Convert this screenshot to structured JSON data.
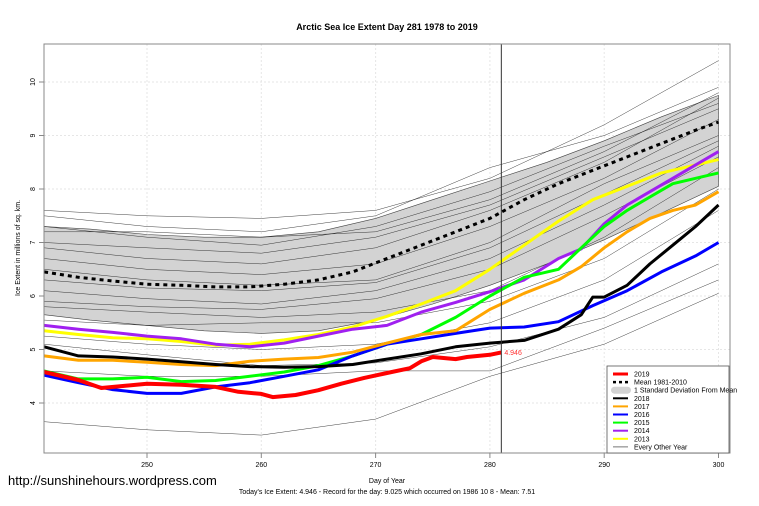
{
  "chart_data": {
    "type": "line",
    "title": "Arctic Sea Ice Extent Day 281 1978 to 2019",
    "xlabel": "Day of Year",
    "ylabel": "Ice Extent in millions of sq. km.",
    "xlim": [
      241,
      301
    ],
    "ylim": [
      3.1,
      10.8
    ],
    "x_ticks": [
      250,
      260,
      270,
      280,
      290,
      300
    ],
    "y_ticks": [
      4,
      5,
      6,
      7,
      8,
      9,
      10
    ],
    "grid": true,
    "current_day_marker": 281,
    "current_value_label": "4.946",
    "legend_position": "bottom-right",
    "caption": "Today's Ice Extent: 4.946  - Record for the day: 9.025 which occurred on 1986 10 8  - Mean: 7.51",
    "watermark": "http://sunshinehours.wordpress.com",
    "std_band": {
      "name": "1 Standard Deviation From Mean",
      "x": [
        241,
        245,
        250,
        255,
        260,
        265,
        270,
        275,
        280,
        285,
        290,
        295,
        300
      ],
      "upper": [
        7.3,
        7.25,
        7.15,
        7.1,
        7.1,
        7.2,
        7.45,
        7.8,
        8.15,
        8.5,
        8.9,
        9.35,
        9.75
      ],
      "lower": [
        5.65,
        5.55,
        5.45,
        5.35,
        5.3,
        5.35,
        5.55,
        5.85,
        6.2,
        6.6,
        7.05,
        7.55,
        8.05
      ],
      "color": "#d3d3d3"
    },
    "series": [
      {
        "name": "2019",
        "color": "#ff0000",
        "width": 4,
        "x": [
          241,
          244,
          246,
          248,
          250,
          253,
          256,
          258,
          260,
          261,
          263,
          265,
          267,
          269,
          271,
          273,
          274,
          275,
          277,
          278,
          280,
          281
        ],
        "y": [
          4.58,
          4.43,
          4.28,
          4.32,
          4.36,
          4.34,
          4.3,
          4.21,
          4.17,
          4.11,
          4.15,
          4.24,
          4.36,
          4.47,
          4.56,
          4.65,
          4.78,
          4.86,
          4.82,
          4.86,
          4.9,
          4.946
        ]
      },
      {
        "name": "Mean 1981-2010",
        "color": "#000000",
        "width": 3,
        "dash": true,
        "x": [
          241,
          244,
          247,
          250,
          253,
          256,
          259,
          262,
          265,
          268,
          271,
          274,
          277,
          280,
          283,
          286,
          289,
          292,
          295,
          298,
          300
        ],
        "y": [
          6.45,
          6.35,
          6.28,
          6.22,
          6.2,
          6.17,
          6.17,
          6.22,
          6.3,
          6.45,
          6.7,
          6.95,
          7.2,
          7.45,
          7.8,
          8.1,
          8.35,
          8.6,
          8.85,
          9.1,
          9.25
        ]
      },
      {
        "name": "2018",
        "color": "#000000",
        "width": 3,
        "x": [
          241,
          244,
          247,
          250,
          253,
          256,
          259,
          262,
          265,
          268,
          271,
          274,
          277,
          280,
          283,
          286,
          288,
          289,
          290,
          292,
          294,
          296,
          298,
          300
        ],
        "y": [
          5.05,
          4.88,
          4.86,
          4.82,
          4.77,
          4.72,
          4.68,
          4.67,
          4.68,
          4.72,
          4.82,
          4.92,
          5.05,
          5.12,
          5.17,
          5.38,
          5.65,
          5.98,
          5.98,
          6.2,
          6.6,
          6.95,
          7.3,
          7.7
        ]
      },
      {
        "name": "2017",
        "color": "#ffa500",
        "width": 3,
        "x": [
          241,
          244,
          247,
          250,
          253,
          256,
          259,
          262,
          265,
          268,
          271,
          274,
          277,
          280,
          283,
          286,
          288,
          290,
          292,
          294,
          296,
          298,
          300
        ],
        "y": [
          4.88,
          4.8,
          4.8,
          4.76,
          4.72,
          4.7,
          4.78,
          4.82,
          4.85,
          4.95,
          5.12,
          5.28,
          5.35,
          5.75,
          6.05,
          6.3,
          6.55,
          6.9,
          7.2,
          7.45,
          7.6,
          7.7,
          7.95
        ]
      },
      {
        "name": "2016",
        "color": "#0000ff",
        "width": 3,
        "x": [
          241,
          244,
          247,
          250,
          253,
          256,
          259,
          262,
          265,
          268,
          271,
          274,
          277,
          280,
          283,
          286,
          289,
          292,
          295,
          298,
          300
        ],
        "y": [
          4.52,
          4.38,
          4.25,
          4.18,
          4.18,
          4.3,
          4.38,
          4.5,
          4.62,
          4.88,
          5.1,
          5.2,
          5.3,
          5.4,
          5.42,
          5.52,
          5.82,
          6.1,
          6.45,
          6.75,
          7.0
        ]
      },
      {
        "name": "2015",
        "color": "#00ff00",
        "width": 3,
        "x": [
          241,
          244,
          247,
          250,
          253,
          256,
          259,
          262,
          265,
          268,
          271,
          274,
          277,
          280,
          283,
          286,
          288,
          290,
          292,
          294,
          296,
          298,
          300
        ],
        "y": [
          4.6,
          4.45,
          4.45,
          4.48,
          4.4,
          4.42,
          4.5,
          4.58,
          4.7,
          4.88,
          5.1,
          5.28,
          5.6,
          6.0,
          6.35,
          6.5,
          6.9,
          7.3,
          7.6,
          7.85,
          8.1,
          8.2,
          8.3
        ]
      },
      {
        "name": "2014",
        "color": "#a020f0",
        "width": 3,
        "x": [
          241,
          244,
          247,
          250,
          253,
          256,
          259,
          262,
          265,
          268,
          271,
          274,
          277,
          280,
          283,
          286,
          288,
          290,
          292,
          294,
          296,
          298,
          300
        ],
        "y": [
          5.45,
          5.38,
          5.32,
          5.25,
          5.2,
          5.1,
          5.05,
          5.12,
          5.25,
          5.38,
          5.45,
          5.7,
          5.88,
          6.08,
          6.3,
          6.7,
          6.88,
          7.35,
          7.7,
          7.95,
          8.2,
          8.45,
          8.7
        ]
      },
      {
        "name": "2013",
        "color": "#ffff00",
        "width": 3,
        "x": [
          241,
          244,
          247,
          250,
          253,
          256,
          259,
          262,
          265,
          268,
          271,
          274,
          277,
          280,
          283,
          286,
          289,
          292,
          295,
          298,
          300
        ],
        "y": [
          5.35,
          5.28,
          5.22,
          5.2,
          5.15,
          5.08,
          5.1,
          5.18,
          5.28,
          5.42,
          5.62,
          5.85,
          6.1,
          6.5,
          6.95,
          7.4,
          7.8,
          8.05,
          8.3,
          8.45,
          8.55
        ]
      }
    ],
    "other_years": {
      "name": "Every Other Year",
      "color": "#000000",
      "x": [
        241,
        250,
        260,
        270,
        280,
        290,
        300
      ],
      "lines": [
        [
          7.6,
          7.5,
          7.45,
          7.6,
          8.2,
          9.2,
          10.4
        ],
        [
          7.5,
          7.3,
          7.2,
          7.5,
          8.4,
          9.0,
          9.9
        ],
        [
          7.3,
          7.1,
          6.95,
          7.3,
          7.95,
          8.8,
          9.6
        ],
        [
          7.2,
          7.2,
          7.1,
          7.2,
          7.8,
          8.7,
          9.8
        ],
        [
          7.0,
          6.9,
          6.8,
          7.1,
          7.7,
          8.6,
          9.5
        ],
        [
          6.9,
          6.7,
          6.6,
          6.9,
          7.6,
          8.5,
          9.7
        ],
        [
          6.7,
          6.5,
          6.4,
          6.6,
          7.3,
          8.2,
          9.3
        ],
        [
          6.5,
          6.3,
          6.2,
          6.3,
          7.0,
          8.1,
          9.0
        ],
        [
          6.3,
          6.15,
          6.1,
          6.25,
          6.9,
          7.9,
          8.9
        ],
        [
          6.1,
          5.95,
          5.85,
          6.1,
          6.7,
          7.7,
          8.8
        ],
        [
          5.9,
          5.8,
          5.75,
          5.95,
          6.5,
          7.5,
          8.6
        ],
        [
          5.8,
          5.7,
          5.6,
          5.7,
          6.1,
          7.1,
          8.4
        ],
        [
          5.55,
          5.45,
          5.5,
          5.5,
          5.9,
          6.7,
          8.0
        ],
        [
          5.25,
          5.1,
          5.0,
          5.1,
          5.5,
          6.3,
          7.6
        ],
        [
          5.1,
          4.9,
          4.7,
          4.75,
          5.05,
          5.6,
          6.6
        ],
        [
          4.6,
          4.5,
          4.5,
          4.6,
          4.6,
          5.4,
          6.3
        ],
        [
          3.65,
          3.5,
          3.4,
          3.7,
          4.5,
          5.1,
          6.05
        ]
      ]
    },
    "legend": [
      {
        "label": "2019",
        "kind": "thick",
        "color": "#ff0000"
      },
      {
        "label": "Mean 1981-2010",
        "kind": "dash",
        "color": "#000000"
      },
      {
        "label": "1 Standard Deviation From Mean",
        "kind": "band",
        "color": "#d3d3d3"
      },
      {
        "label": "2018",
        "kind": "line",
        "color": "#000000"
      },
      {
        "label": "2017",
        "kind": "line",
        "color": "#ffa500"
      },
      {
        "label": "2016",
        "kind": "line",
        "color": "#0000ff"
      },
      {
        "label": "2015",
        "kind": "line",
        "color": "#00ff00"
      },
      {
        "label": "2014",
        "kind": "line",
        "color": "#a020f0"
      },
      {
        "label": "2013",
        "kind": "line",
        "color": "#ffff00"
      },
      {
        "label": "Every Other Year",
        "kind": "thin",
        "color": "#555555"
      }
    ]
  }
}
